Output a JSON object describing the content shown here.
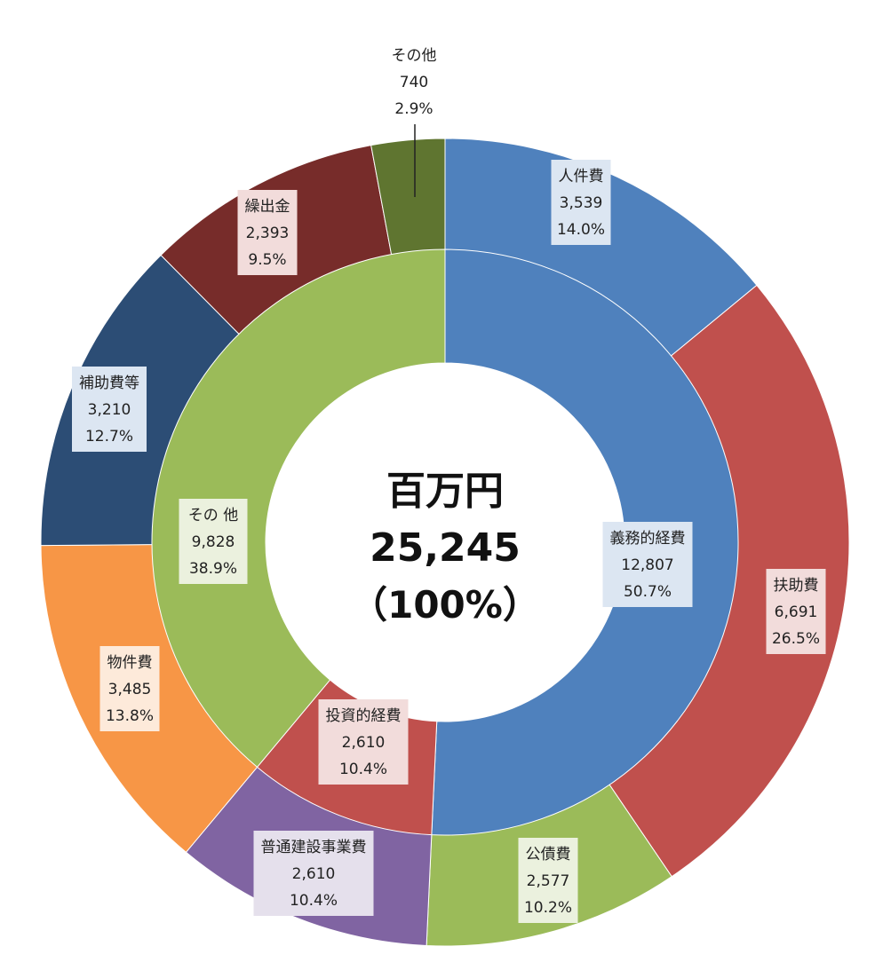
{
  "chart_data": {
    "type": "pie",
    "unit": "百万円",
    "center": {
      "unit": "百万円",
      "total": "25,245",
      "percent": "（100%）"
    },
    "inner": [
      {
        "name": "義務的経費",
        "value": "12,807",
        "percent": "50.7%",
        "color": "#4f81bd",
        "box": "#dce6f2"
      },
      {
        "name": "投資的経費",
        "value": "2,610",
        "percent": "10.4%",
        "color": "#c0504d",
        "box": "#f2dcdb"
      },
      {
        "name": "その 他",
        "value": "9,828",
        "percent": "38.9%",
        "color": "#9bbb59",
        "box": "#ebf1de"
      }
    ],
    "outer": [
      {
        "name": "人件費",
        "value": "3,539",
        "percent": "14.0%",
        "color": "#4f81bd",
        "box": "#dce6f2"
      },
      {
        "name": "扶助費",
        "value": "6,691",
        "percent": "26.5%",
        "color": "#c0504d",
        "box": "#f2dcdb"
      },
      {
        "name": "公債費",
        "value": "2,577",
        "percent": "10.2%",
        "color": "#9bbb59",
        "box": "#ebf1de"
      },
      {
        "name": "普通建設事業費",
        "value": "2,610",
        "percent": "10.4%",
        "color": "#8064a2",
        "box": "#e5e0ec"
      },
      {
        "name": "物件費",
        "value": "3,485",
        "percent": "13.8%",
        "color": "#f79646",
        "box": "#fdeada"
      },
      {
        "name": "補助費等",
        "value": "3,210",
        "percent": "12.7%",
        "color": "#2c4d75",
        "box": "#dce6f2"
      },
      {
        "name": "繰出金",
        "value": "2,393",
        "percent": "9.5%",
        "color": "#772c2a",
        "box": "#f2dcdb"
      },
      {
        "name": "その他",
        "value": "740",
        "percent": "2.9%",
        "color": "#5f7530",
        "box": "#ffffff"
      }
    ]
  }
}
